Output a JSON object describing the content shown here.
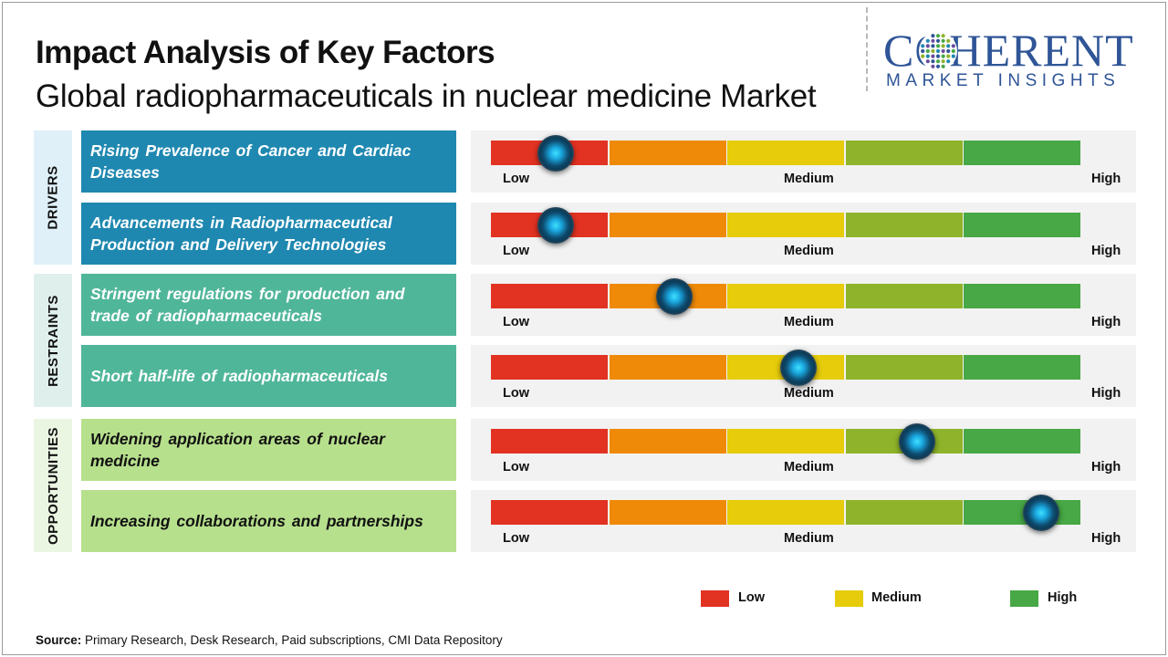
{
  "title": "Impact Analysis of Key Factors",
  "subtitle": "Global radiopharmaceuticals in nuclear medicine Market",
  "logo": {
    "main": "COHERENT",
    "sub": "MARKET INSIGHTS"
  },
  "scale": {
    "segment_colors": [
      "#e23222",
      "#ee8a08",
      "#e6cc0a",
      "#8fb32a",
      "#47a845"
    ],
    "low_label": "Low",
    "medium_label": "Medium",
    "high_label": "High"
  },
  "categories": [
    {
      "label": "DRIVERS",
      "bg": "#dff0f8",
      "text_color": "#ffffff",
      "factor_bg": "#1f88b0"
    },
    {
      "label": "RESTRAINTS",
      "bg": "#dff0ec",
      "text_color": "#ffffff",
      "factor_bg": "#50b69a"
    },
    {
      "label": "OPPORTUNITIES",
      "bg": "#ebf6e2",
      "text_color": "#111111",
      "factor_bg": "#b7e08d"
    }
  ],
  "chart_data": {
    "type": "gauge",
    "scale_levels": [
      "Low",
      "Medium",
      "High"
    ],
    "level_scale": "0 = Low, 0.5 = Medium, 1 = High",
    "factors": [
      {
        "category": "DRIVERS",
        "label": "Rising Prevalence of Cancer and Cardiac Diseases",
        "level": 0.11
      },
      {
        "category": "DRIVERS",
        "label": "Advancements in Radiopharmaceutical Production and Delivery Technologies",
        "level": 0.11
      },
      {
        "category": "RESTRAINTS",
        "label": "Stringent regulations for production and trade of radiopharmaceuticals",
        "level": 0.31
      },
      {
        "category": "RESTRAINTS",
        "label": "Short half-life of radiopharmaceuticals",
        "level": 0.52
      },
      {
        "category": "OPPORTUNITIES",
        "label": "Widening application areas of nuclear medicine",
        "level": 0.72
      },
      {
        "category": "OPPORTUNITIES",
        "label": "Increasing collaborations and partnerships",
        "level": 0.93
      }
    ],
    "legend": [
      {
        "label": "Low",
        "color": "#e23222"
      },
      {
        "label": "Medium",
        "color": "#e6cc0a"
      },
      {
        "label": "High",
        "color": "#47a845"
      }
    ]
  },
  "source": {
    "label": "Source:",
    "text": " Primary Research, Desk Research, Paid subscriptions, CMI Data Repository"
  }
}
